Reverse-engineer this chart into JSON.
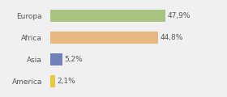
{
  "categories": [
    "Europa",
    "Africa",
    "Asia",
    "America"
  ],
  "values": [
    47.9,
    44.8,
    5.2,
    2.1
  ],
  "labels": [
    "47,9%",
    "44,8%",
    "5,2%",
    "2,1%"
  ],
  "bar_colors": [
    "#a8c480",
    "#e8b882",
    "#7080b8",
    "#e8c840"
  ],
  "background_color": "#f0f0f0",
  "xlim": [
    0,
    62
  ],
  "bar_height": 0.55,
  "label_fontsize": 6.5,
  "ytick_fontsize": 6.5,
  "label_color": "#555555",
  "ytick_color": "#555555"
}
